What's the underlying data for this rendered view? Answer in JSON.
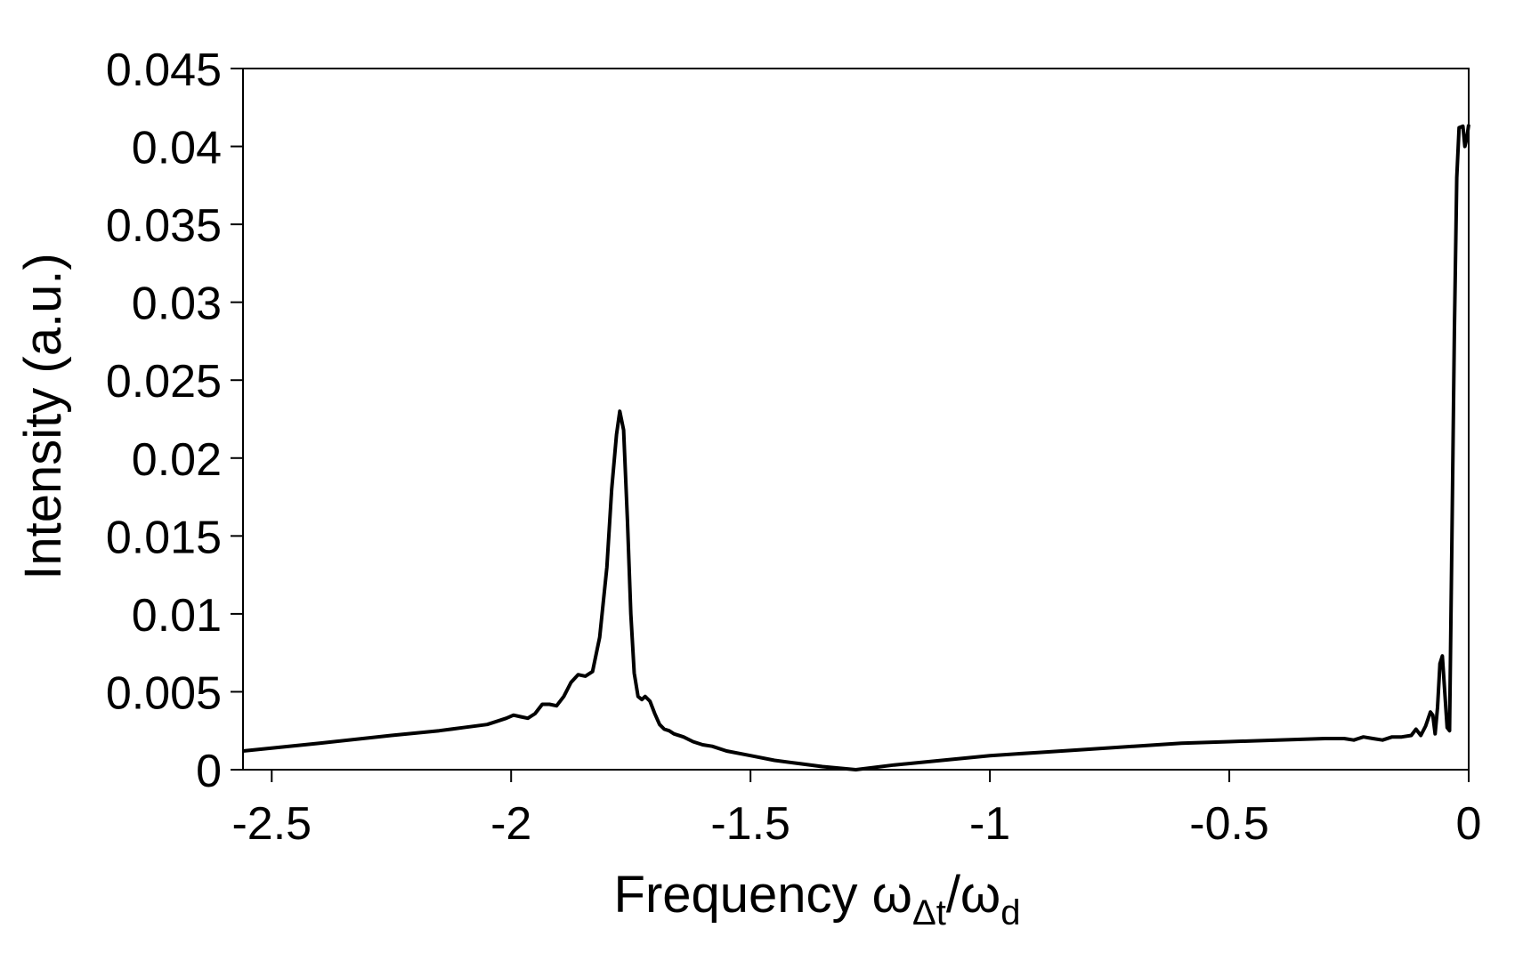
{
  "chart_data": {
    "type": "line",
    "xlabel": {
      "main": "Frequency ω",
      "sub1": "Δt",
      "slash": "/ω",
      "sub2": "d"
    },
    "ylabel": "Intensity (a.u.)",
    "xlim": [
      -2.56,
      0
    ],
    "ylim": [
      0,
      0.045
    ],
    "xticks": [
      -2.5,
      -2,
      -1.5,
      -1,
      -0.5,
      0
    ],
    "xtick_labels": [
      "-2.5",
      "-2",
      "-1.5",
      "-1",
      "-0.5",
      "0"
    ],
    "yticks": [
      0,
      0.005,
      0.01,
      0.015,
      0.02,
      0.025,
      0.03,
      0.035,
      0.04,
      0.045
    ],
    "ytick_labels": [
      "0",
      "0.005",
      "0.01",
      "0.015",
      "0.02",
      "0.025",
      "0.03",
      "0.035",
      "0.04",
      "0.045"
    ],
    "grid": false,
    "legend": "none",
    "series": [
      {
        "color": "#000000",
        "x": [
          -2.56,
          -2.4,
          -2.25,
          -2.15,
          -2.1,
          -2.05,
          -2.03,
          -2.01,
          -1.995,
          -1.98,
          -1.965,
          -1.95,
          -1.935,
          -1.92,
          -1.905,
          -1.89,
          -1.875,
          -1.86,
          -1.845,
          -1.83,
          -1.815,
          -1.8,
          -1.79,
          -1.78,
          -1.773,
          -1.765,
          -1.757,
          -1.75,
          -1.743,
          -1.735,
          -1.727,
          -1.72,
          -1.71,
          -1.7,
          -1.69,
          -1.68,
          -1.67,
          -1.66,
          -1.64,
          -1.62,
          -1.6,
          -1.58,
          -1.55,
          -1.5,
          -1.45,
          -1.4,
          -1.35,
          -1.28,
          -1.2,
          -1.1,
          -1.0,
          -0.9,
          -0.8,
          -0.7,
          -0.6,
          -0.5,
          -0.4,
          -0.3,
          -0.26,
          -0.24,
          -0.22,
          -0.2,
          -0.18,
          -0.16,
          -0.14,
          -0.12,
          -0.11,
          -0.1,
          -0.09,
          -0.08,
          -0.075,
          -0.07,
          -0.065,
          -0.06,
          -0.055,
          -0.05,
          -0.045,
          -0.04,
          -0.035,
          -0.03,
          -0.025,
          -0.02,
          -0.012,
          -0.008,
          -0.004,
          0
        ],
        "y": [
          0.0012,
          0.0017,
          0.0022,
          0.0025,
          0.0027,
          0.0029,
          0.0031,
          0.0033,
          0.0035,
          0.0034,
          0.0033,
          0.0036,
          0.0042,
          0.0042,
          0.0041,
          0.0047,
          0.0056,
          0.0061,
          0.006,
          0.0063,
          0.0085,
          0.013,
          0.018,
          0.0215,
          0.023,
          0.0218,
          0.016,
          0.01,
          0.0062,
          0.0047,
          0.0045,
          0.0047,
          0.0044,
          0.0036,
          0.0029,
          0.0026,
          0.0025,
          0.0023,
          0.0021,
          0.0018,
          0.0016,
          0.0015,
          0.0012,
          0.0009,
          0.0006,
          0.0004,
          0.0002,
          0.0,
          0.0003,
          0.0006,
          0.0009,
          0.0011,
          0.0013,
          0.0015,
          0.0017,
          0.0018,
          0.0019,
          0.002,
          0.002,
          0.0019,
          0.0021,
          0.002,
          0.0019,
          0.0021,
          0.0021,
          0.0022,
          0.0026,
          0.0022,
          0.0028,
          0.0037,
          0.0035,
          0.0023,
          0.004,
          0.0068,
          0.0073,
          0.005,
          0.0027,
          0.0025,
          0.015,
          0.028,
          0.038,
          0.0412,
          0.0413,
          0.04,
          0.0405,
          0.0414
        ]
      }
    ]
  }
}
